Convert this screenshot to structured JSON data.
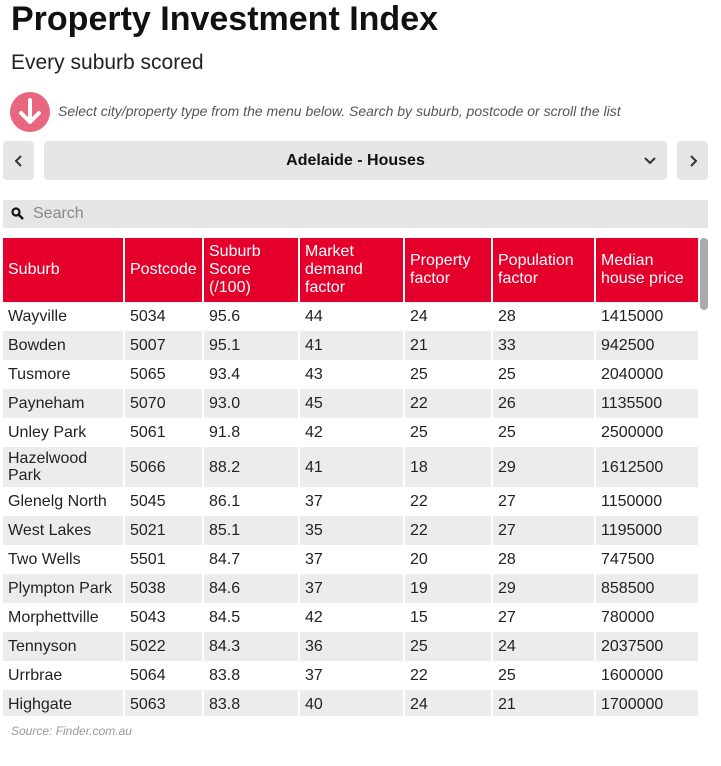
{
  "header": {
    "title": "Property Investment Index",
    "subtitle": "Every suburb scored",
    "instruction": "Select city/property type from the menu below. Search by suburb, postcode or scroll the list"
  },
  "selector": {
    "label": "Adelaide - Houses"
  },
  "search": {
    "placeholder": "Search"
  },
  "table": {
    "columns": [
      "Suburb",
      "Postcode",
      "Suburb Score (/100)",
      "Market demand factor",
      "Property factor",
      "Population factor",
      "Median house price"
    ],
    "rows": [
      [
        "Wayville",
        "5034",
        "95.6",
        "44",
        "24",
        "28",
        "1415000"
      ],
      [
        "Bowden",
        "5007",
        "95.1",
        "41",
        "21",
        "33",
        "942500"
      ],
      [
        "Tusmore",
        "5065",
        "93.4",
        "43",
        "25",
        "25",
        "2040000"
      ],
      [
        "Payneham",
        "5070",
        "93.0",
        "45",
        "22",
        "26",
        "1135500"
      ],
      [
        "Unley Park",
        "5061",
        "91.8",
        "42",
        "25",
        "25",
        "2500000"
      ],
      [
        "Hazelwood Park",
        "5066",
        "88.2",
        "41",
        "18",
        "29",
        "1612500"
      ],
      [
        "Glenelg North",
        "5045",
        "86.1",
        "37",
        "22",
        "27",
        "1150000"
      ],
      [
        "West Lakes",
        "5021",
        "85.1",
        "35",
        "22",
        "27",
        "1195000"
      ],
      [
        "Two Wells",
        "5501",
        "84.7",
        "37",
        "20",
        "28",
        "747500"
      ],
      [
        "Plympton Park",
        "5038",
        "84.6",
        "37",
        "19",
        "29",
        "858500"
      ],
      [
        "Morphettville",
        "5043",
        "84.5",
        "42",
        "15",
        "27",
        "780000"
      ],
      [
        "Tennyson",
        "5022",
        "84.3",
        "36",
        "25",
        "24",
        "2037500"
      ],
      [
        "Urrbrae",
        "5064",
        "83.8",
        "37",
        "22",
        "25",
        "1600000"
      ],
      [
        "Highgate",
        "5063",
        "83.8",
        "40",
        "24",
        "21",
        "1700000"
      ]
    ]
  },
  "footer": {
    "source": "Source: Finder.com.au"
  }
}
